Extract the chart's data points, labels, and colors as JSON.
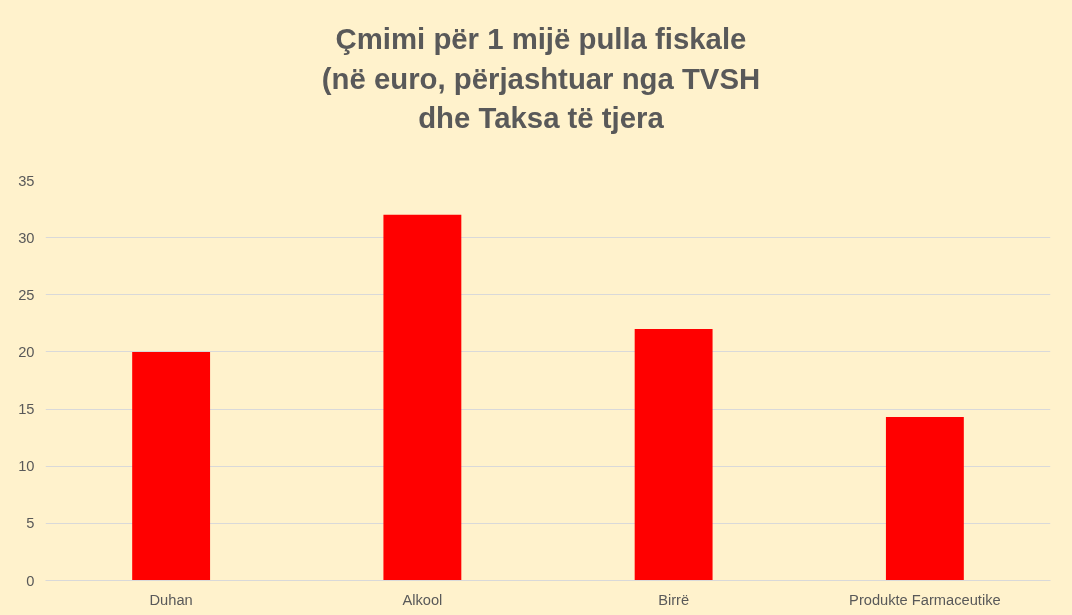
{
  "chart_data": {
    "type": "bar",
    "title": "Çmimi për 1 mijë pulla fiskale\n(në euro, përjashtuar nga TVSH\ndhe Taksa të tjera",
    "categories": [
      "Duhan",
      "Alkool",
      "Birrë",
      "Produkte Farmaceutike"
    ],
    "values": [
      20,
      32,
      22,
      14.3
    ],
    "color": "#ff0000",
    "ylim": [
      0,
      35
    ],
    "yticks": [
      0,
      5,
      10,
      15,
      20,
      25,
      30,
      35
    ],
    "grid": "y"
  }
}
